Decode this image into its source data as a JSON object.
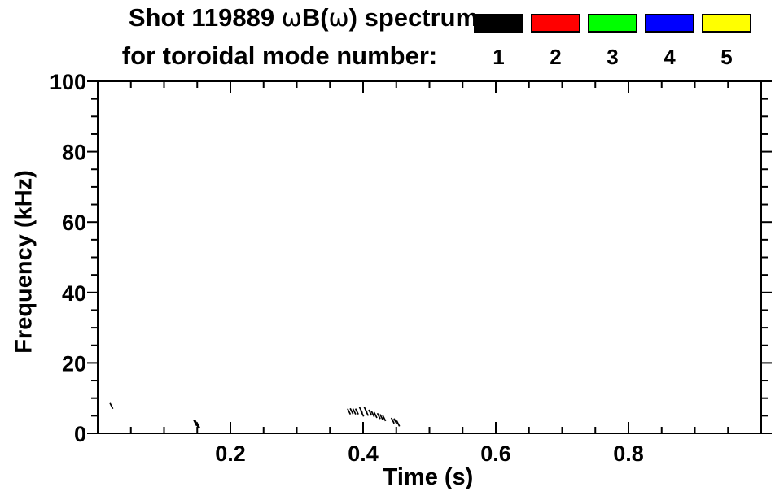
{
  "header": {
    "title_part1": "Shot 119889 ",
    "title_omega1": "ω",
    "title_part2": "B(",
    "title_omega2": "ω",
    "title_part3": ") spectrum",
    "subtitle": "for toroidal mode number:"
  },
  "legend": {
    "items": [
      {
        "label": "1",
        "color": "#000000"
      },
      {
        "label": "2",
        "color": "#ff0000"
      },
      {
        "label": "3",
        "color": "#00ff00"
      },
      {
        "label": "4",
        "color": "#0000ff"
      },
      {
        "label": "5",
        "color": "#ffff00"
      }
    ]
  },
  "axes": {
    "xlabel": "Time (s)",
    "ylabel": "Frequency (kHz)"
  },
  "chart_data": {
    "type": "scatter",
    "title": "Shot 119889 ωB(ω) spectrum for toroidal mode number: 1 2 3 4 5",
    "xlabel": "Time (s)",
    "ylabel": "Frequency (kHz)",
    "xlim": [
      0.0,
      1.0
    ],
    "ylim": [
      0,
      100
    ],
    "grid": false,
    "x_major_ticks": [
      0.2,
      0.4,
      0.6,
      0.8
    ],
    "x_major_tick_labels": [
      "0.2",
      "0.4",
      "0.6",
      "0.8"
    ],
    "x_minor_step": 0.05,
    "y_major_ticks": [
      0,
      20,
      40,
      60,
      80,
      100
    ],
    "y_major_tick_labels": [
      "0",
      "20",
      "40",
      "60",
      "80",
      "100"
    ],
    "y_minor_step": 5,
    "legend_position": "top-right above axes",
    "series": [
      {
        "name": "1",
        "color": "#000000",
        "points": [
          [
            0.021,
            7.8
          ],
          [
            0.148,
            3.0,
            3
          ],
          [
            0.151,
            2.3,
            3
          ],
          [
            0.379,
            6.2
          ],
          [
            0.383,
            6.3
          ],
          [
            0.387,
            6.2
          ],
          [
            0.391,
            6.2
          ],
          [
            0.397,
            6.6
          ],
          [
            0.399,
            5.6
          ],
          [
            0.404,
            6.7
          ],
          [
            0.406,
            5.8
          ],
          [
            0.411,
            5.9
          ],
          [
            0.415,
            5.5
          ],
          [
            0.419,
            5.2
          ],
          [
            0.424,
            4.9
          ],
          [
            0.428,
            4.6
          ],
          [
            0.432,
            4.3
          ],
          [
            0.445,
            3.6
          ],
          [
            0.449,
            3.4
          ],
          [
            0.453,
            2.8
          ]
        ]
      },
      {
        "name": "2",
        "color": "#ff0000",
        "points": []
      },
      {
        "name": "3",
        "color": "#00ff00",
        "points": []
      },
      {
        "name": "4",
        "color": "#0000ff",
        "points": []
      },
      {
        "name": "5",
        "color": "#ffff00",
        "points": []
      }
    ]
  }
}
